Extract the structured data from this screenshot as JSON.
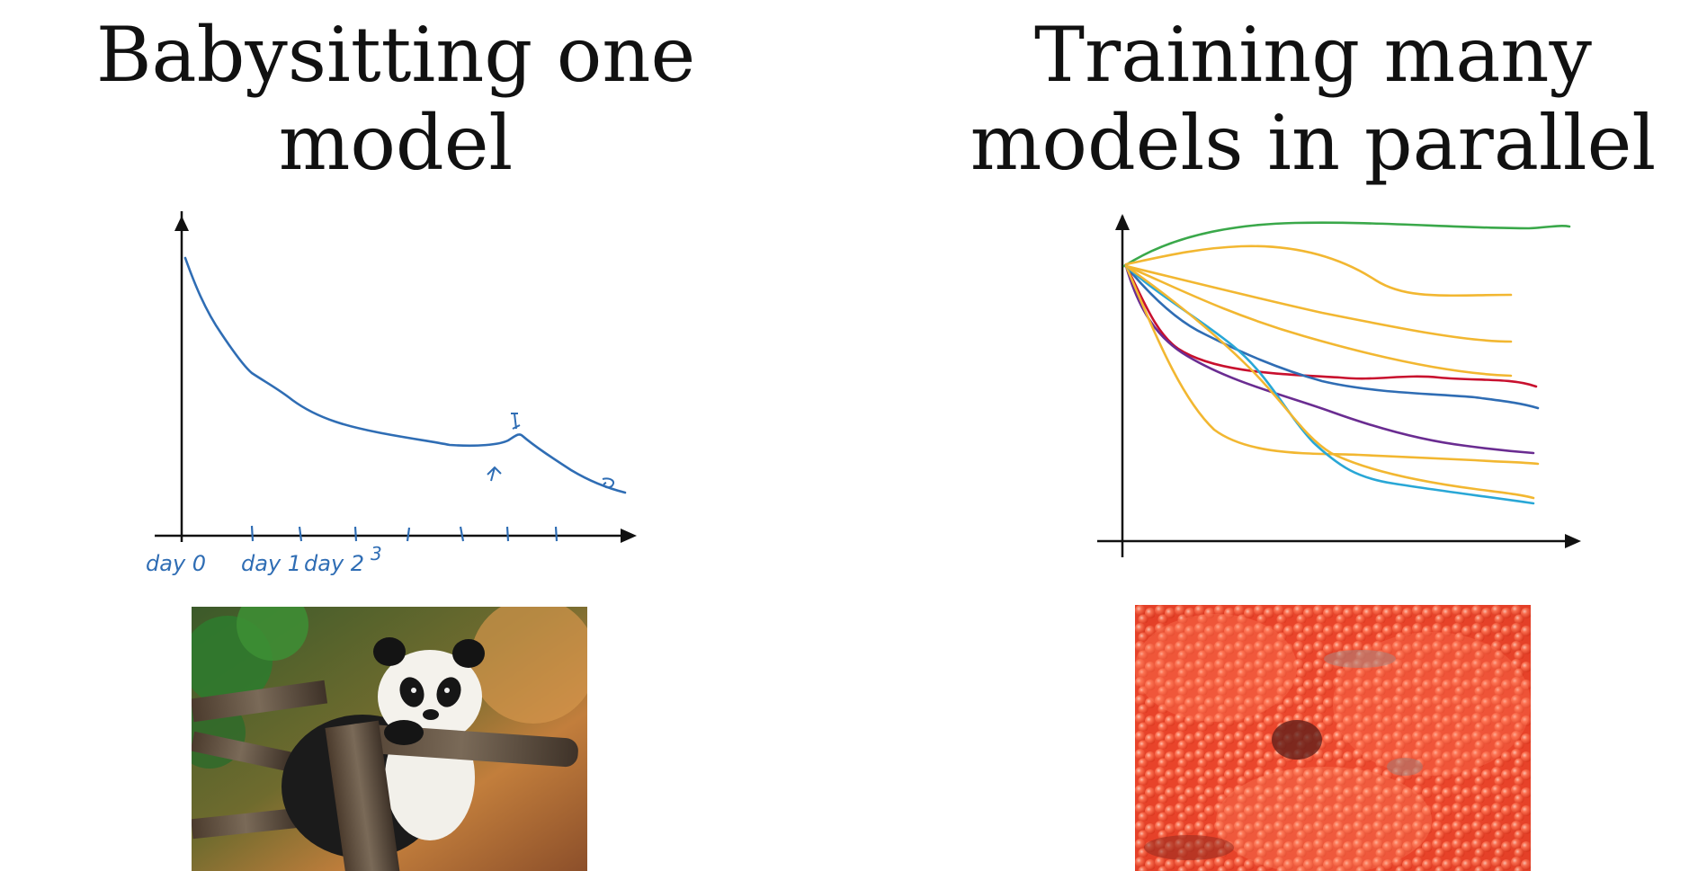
{
  "left": {
    "title_line1": "Babysitting one",
    "title_line2": "model",
    "tick_labels": [
      "day 0",
      "day 1",
      "day 2",
      "3"
    ],
    "photo": "panda-photo"
  },
  "right": {
    "title_line1": "Training many",
    "title_line2": "models in parallel",
    "photo": "caviar-photo"
  },
  "colors": {
    "ink": "#2f6db4",
    "green": "#3aa84a",
    "yellow": "#f2b731",
    "red": "#c8102e",
    "blue": "#2f6db4",
    "purple": "#6a2c91",
    "cyan": "#29a7d6"
  }
}
